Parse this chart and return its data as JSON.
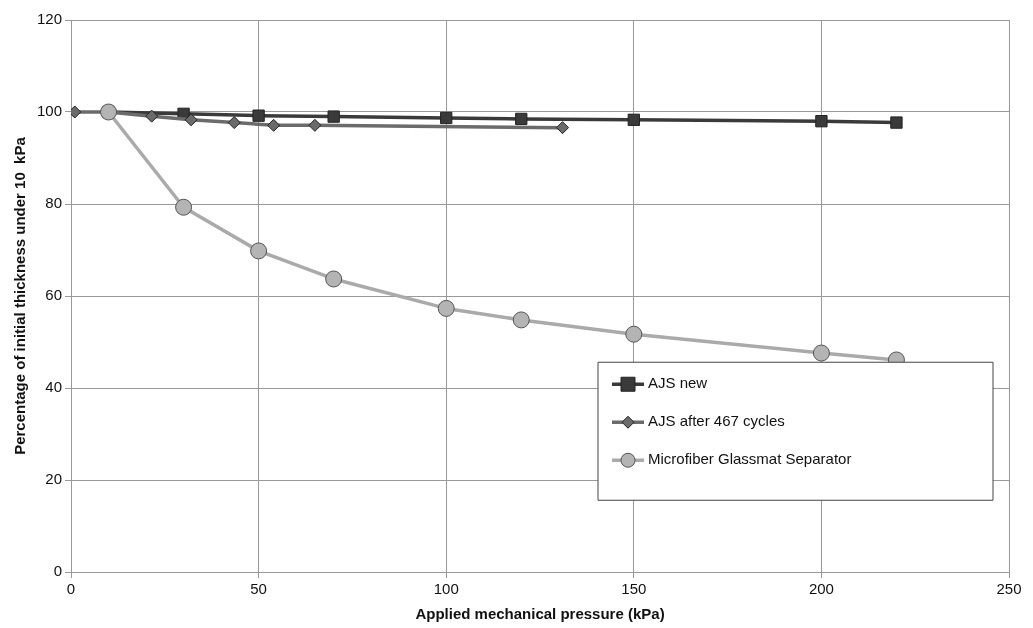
{
  "chart_data": {
    "type": "line",
    "xlabel": "Applied mechanical pressure (kPa)",
    "ylabel": "Percentage of initial thickness under 10  kPa",
    "xlim": [
      0,
      250
    ],
    "xticks": [
      0,
      50,
      100,
      150,
      200,
      250
    ],
    "ylim": [
      0,
      120
    ],
    "yticks": [
      0,
      20,
      40,
      60,
      80,
      100,
      120
    ],
    "grid": true,
    "legend": "bottom right",
    "series": [
      {
        "name": "AJS new",
        "color": "#3a3a3a",
        "marker": "square",
        "x": [
          10,
          30,
          50,
          70,
          100,
          120,
          150,
          200,
          220
        ],
        "values": [
          100,
          99.6,
          99.2,
          99,
          98.7,
          98.5,
          98.3,
          98,
          97.7
        ]
      },
      {
        "name": "AJS after 467 cycles",
        "color": "#6b6b6b",
        "marker": "diamond",
        "x": [
          1,
          10,
          21.5,
          32,
          43.5,
          54,
          65,
          131
        ],
        "values": [
          100,
          100,
          99.1,
          98.3,
          97.7,
          97.1,
          97.1,
          96.6
        ]
      },
      {
        "name": "Microfiber Glassmat Separator",
        "color": "#aaaaaa",
        "marker": "circle",
        "x": [
          10,
          30,
          50,
          70,
          100,
          120,
          150,
          200,
          220
        ],
        "values": [
          100,
          79.3,
          69.8,
          63.7,
          57.3,
          54.8,
          51.7,
          47.6,
          46.1
        ]
      }
    ]
  }
}
